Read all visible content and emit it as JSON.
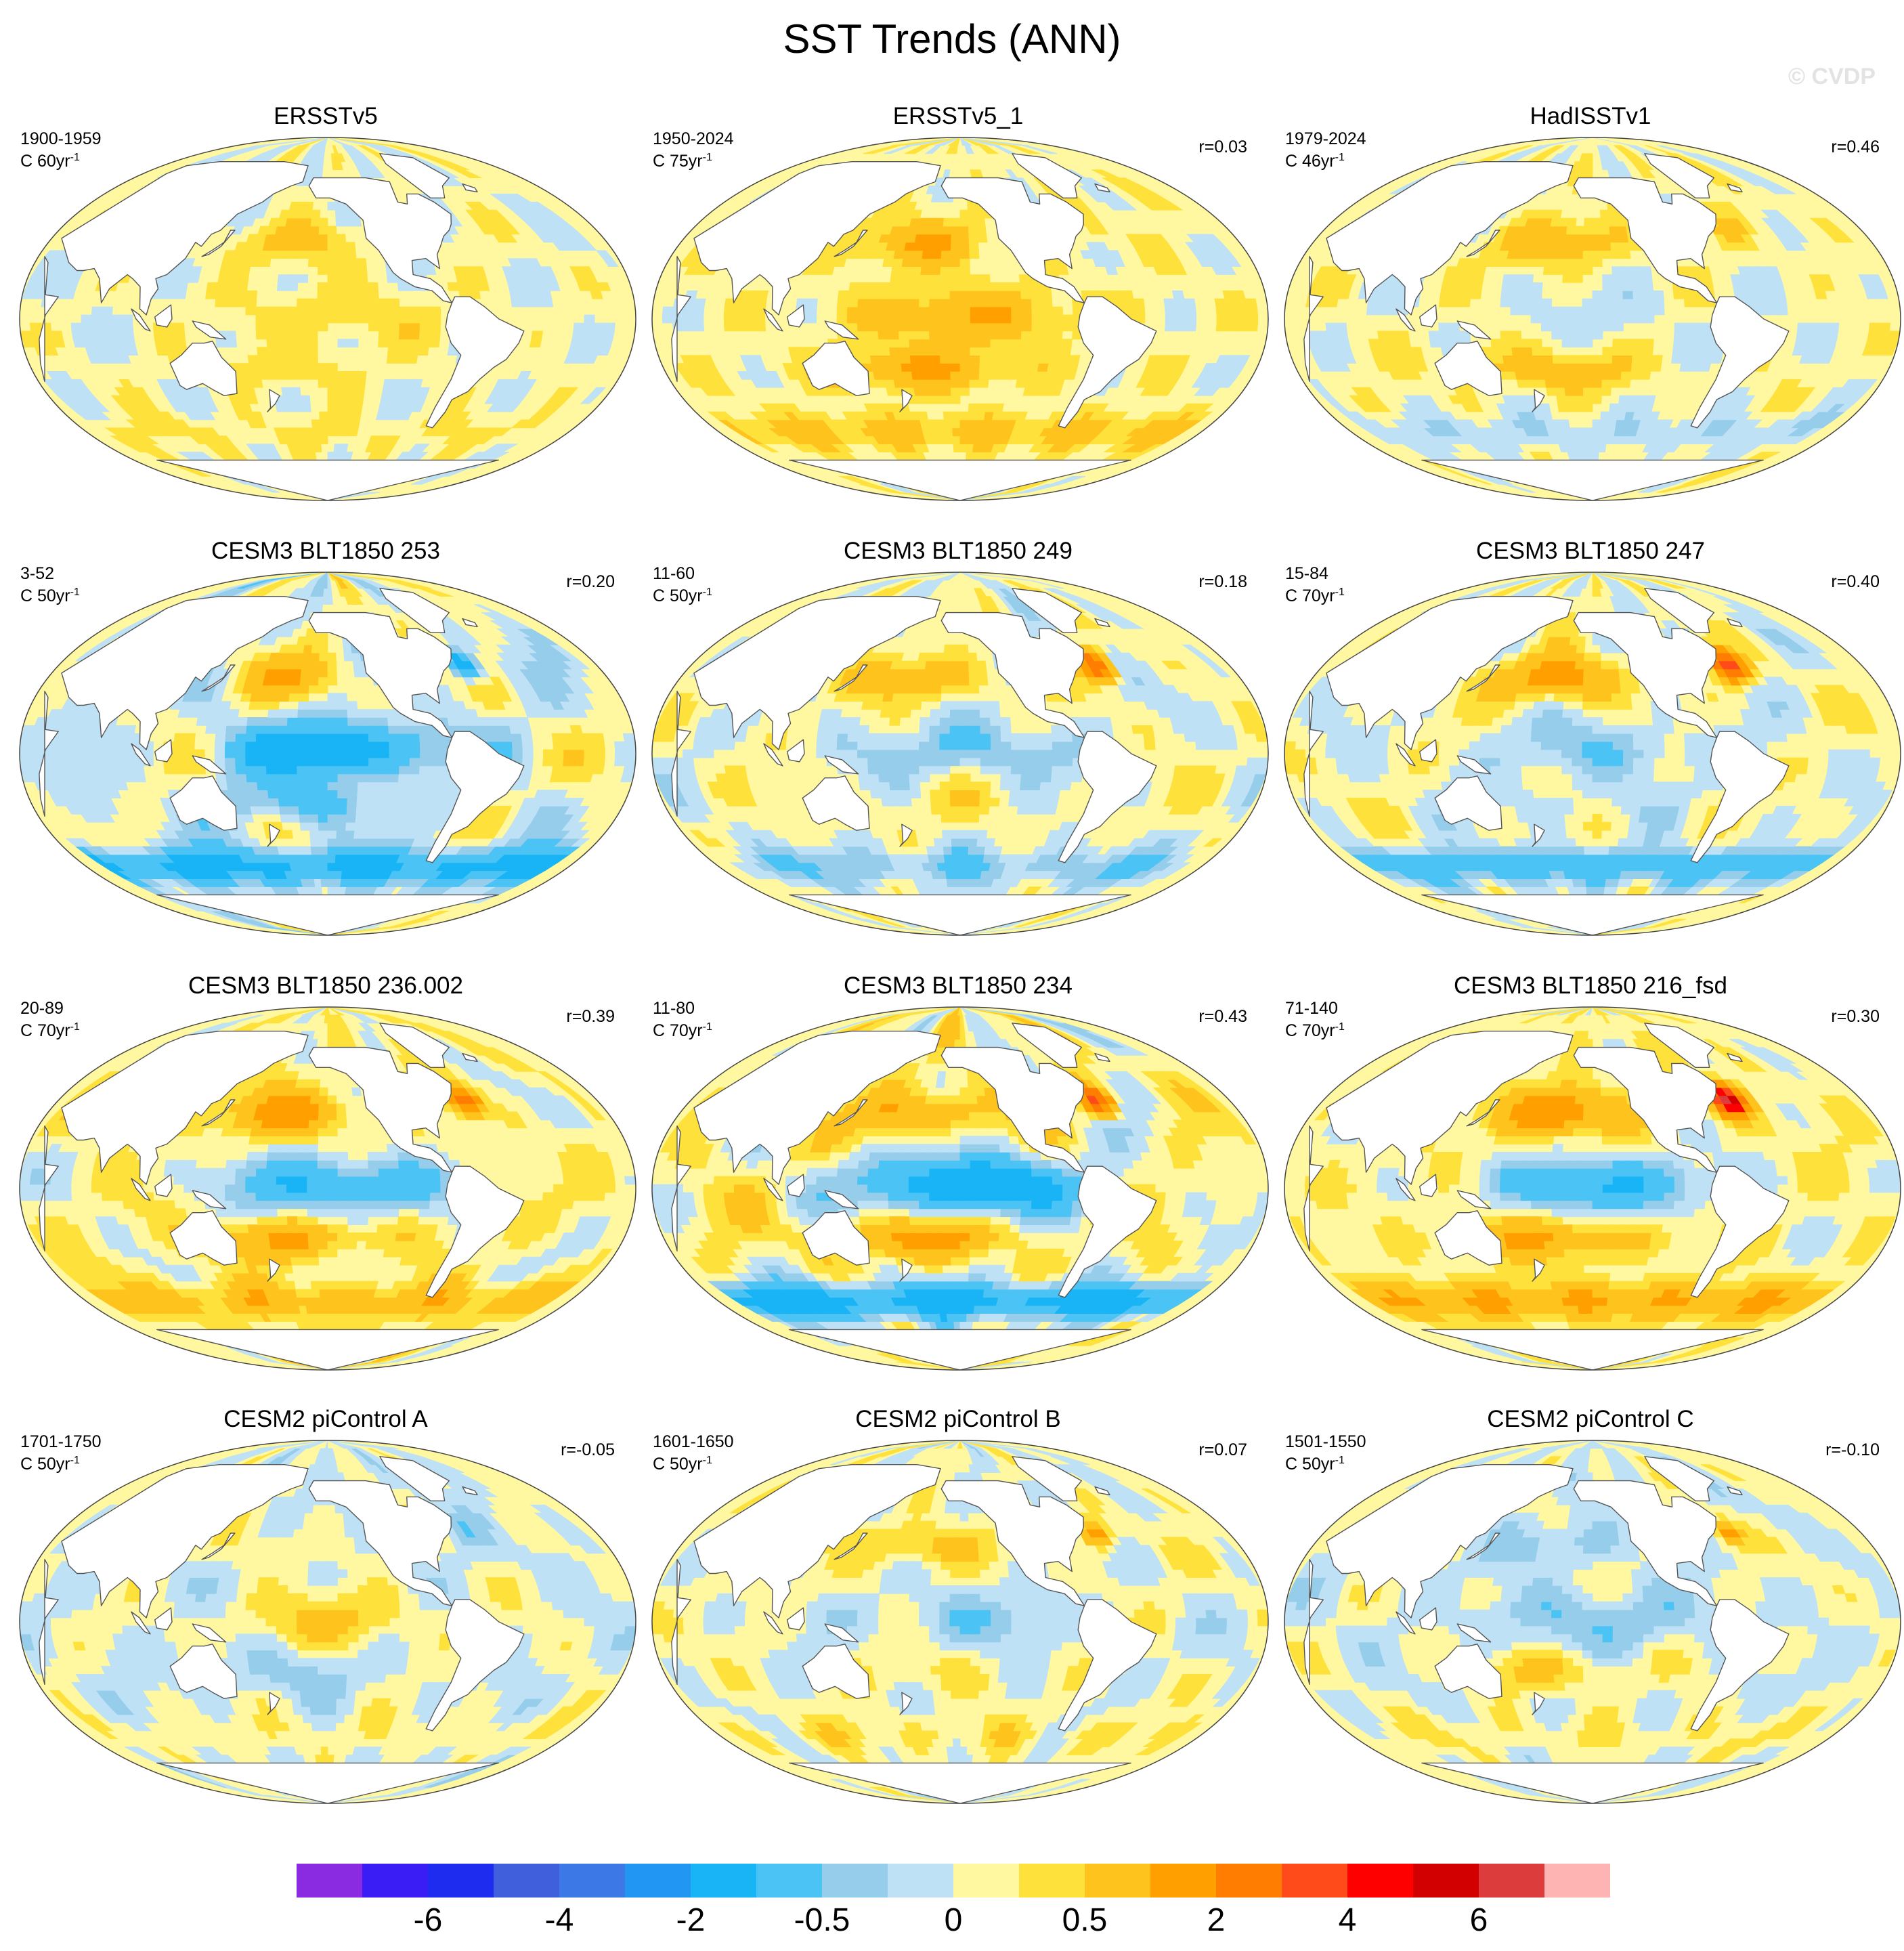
{
  "figure": {
    "title": "SST Trends (ANN)",
    "watermark": "© CVDP"
  },
  "panels": [
    {
      "title": "ERSSTv5",
      "period": "1900-1959",
      "units": "C 60yr",
      "units_exp": "-1",
      "corr": "",
      "pattern": {
        "nh": 0.6,
        "eq": 0.4,
        "sh": 0.3,
        "so": 0.2,
        "spot": 0.1,
        "blue": 0.2
      }
    },
    {
      "title": "ERSSTv5_1",
      "period": "1950-2024",
      "units": "C 75yr",
      "units_exp": "-1",
      "corr": "r=0.03",
      "pattern": {
        "nh": 0.9,
        "eq": 0.8,
        "sh": 0.9,
        "so": 0.5,
        "spot": 0.3,
        "blue": 0.0
      }
    },
    {
      "title": "HadISSTv1",
      "period": "1979-2024",
      "units": "C 46yr",
      "units_exp": "-1",
      "corr": "r=0.46",
      "pattern": {
        "nh": 0.8,
        "eq": -0.2,
        "sh": 0.6,
        "so": -0.3,
        "spot": 0.6,
        "blue": 0.3
      }
    },
    {
      "title": "CESM3 BLT1850 253",
      "period": "3-52",
      "units": "C 50yr",
      "units_exp": "-1",
      "corr": "r=0.20",
      "pattern": {
        "nh": 0.8,
        "eq": -1.5,
        "sh": -0.6,
        "so": -1.2,
        "spot": -2.0,
        "blue": 1.0
      }
    },
    {
      "title": "CESM3 BLT1850 249",
      "period": "11-60",
      "units": "C 50yr",
      "units_exp": "-1",
      "corr": "r=0.18",
      "pattern": {
        "nh": 0.8,
        "eq": -0.6,
        "sh": 0.2,
        "so": -0.5,
        "spot": 3.0,
        "blue": 0.6
      }
    },
    {
      "title": "CESM3 BLT1850 247",
      "period": "15-84",
      "units": "C 70yr",
      "units_exp": "-1",
      "corr": "r=0.40",
      "pattern": {
        "nh": 1.2,
        "eq": -0.5,
        "sh": -0.2,
        "so": -0.8,
        "spot": 4.0,
        "blue": 0.5
      }
    },
    {
      "title": "CESM3 BLT1850 236.002",
      "period": "20-89",
      "units": "C 70yr",
      "units_exp": "-1",
      "corr": "r=0.39",
      "pattern": {
        "nh": 1.2,
        "eq": -1.2,
        "sh": 0.8,
        "so": 0.6,
        "spot": 2.5,
        "blue": 0.6
      }
    },
    {
      "title": "CESM3 BLT1850 234",
      "period": "11-80",
      "units": "C 70yr",
      "units_exp": "-1",
      "corr": "r=0.43",
      "pattern": {
        "nh": 1.0,
        "eq": -1.8,
        "sh": 1.0,
        "so": -1.4,
        "spot": 3.0,
        "blue": 1.0
      }
    },
    {
      "title": "CESM3 BLT1850 216_fsd",
      "period": "71-140",
      "units": "C 70yr",
      "units_exp": "-1",
      "corr": "r=0.30",
      "pattern": {
        "nh": 1.4,
        "eq": -1.2,
        "sh": 0.8,
        "so": 0.8,
        "spot": 6.0,
        "blue": 0.3
      }
    },
    {
      "title": "CESM2 piControl A",
      "period": "1701-1750",
      "units": "C 50yr",
      "units_exp": "-1",
      "corr": "r=-0.05",
      "pattern": {
        "nh": 0.2,
        "eq": 0.5,
        "sh": -0.3,
        "so": 0.2,
        "spot": -0.3,
        "blue": 0.4
      }
    },
    {
      "title": "CESM2 piControl B",
      "period": "1601-1650",
      "units": "C 50yr",
      "units_exp": "-1",
      "corr": "r=0.07",
      "pattern": {
        "nh": 0.6,
        "eq": -0.4,
        "sh": 0.2,
        "so": 0.2,
        "spot": 1.5,
        "blue": 0.4
      }
    },
    {
      "title": "CESM2 piControl C",
      "period": "1501-1550",
      "units": "C 50yr",
      "units_exp": "-1",
      "corr": "r=-0.10",
      "pattern": {
        "nh": -0.4,
        "eq": -0.5,
        "sh": 0.5,
        "so": 0.2,
        "spot": 1.2,
        "blue": 0.4
      }
    }
  ],
  "colorbar": {
    "colors": [
      "#8a2be2",
      "#3a1cf5",
      "#1e2cf0",
      "#3f5fdc",
      "#3c78e6",
      "#2196f3",
      "#19b4f5",
      "#4bc3f5",
      "#96cdeb",
      "#bee1f5",
      "#fff8a0",
      "#ffe13c",
      "#ffc31e",
      "#ffa000",
      "#ff7d00",
      "#ff4b19",
      "#ff0000",
      "#d20000",
      "#dc3c3c",
      "#ffb4b4"
    ],
    "tick_labels": [
      "-6",
      "-4",
      "-2",
      "-0.5",
      "0",
      "0.5",
      "2",
      "4",
      "6"
    ]
  }
}
